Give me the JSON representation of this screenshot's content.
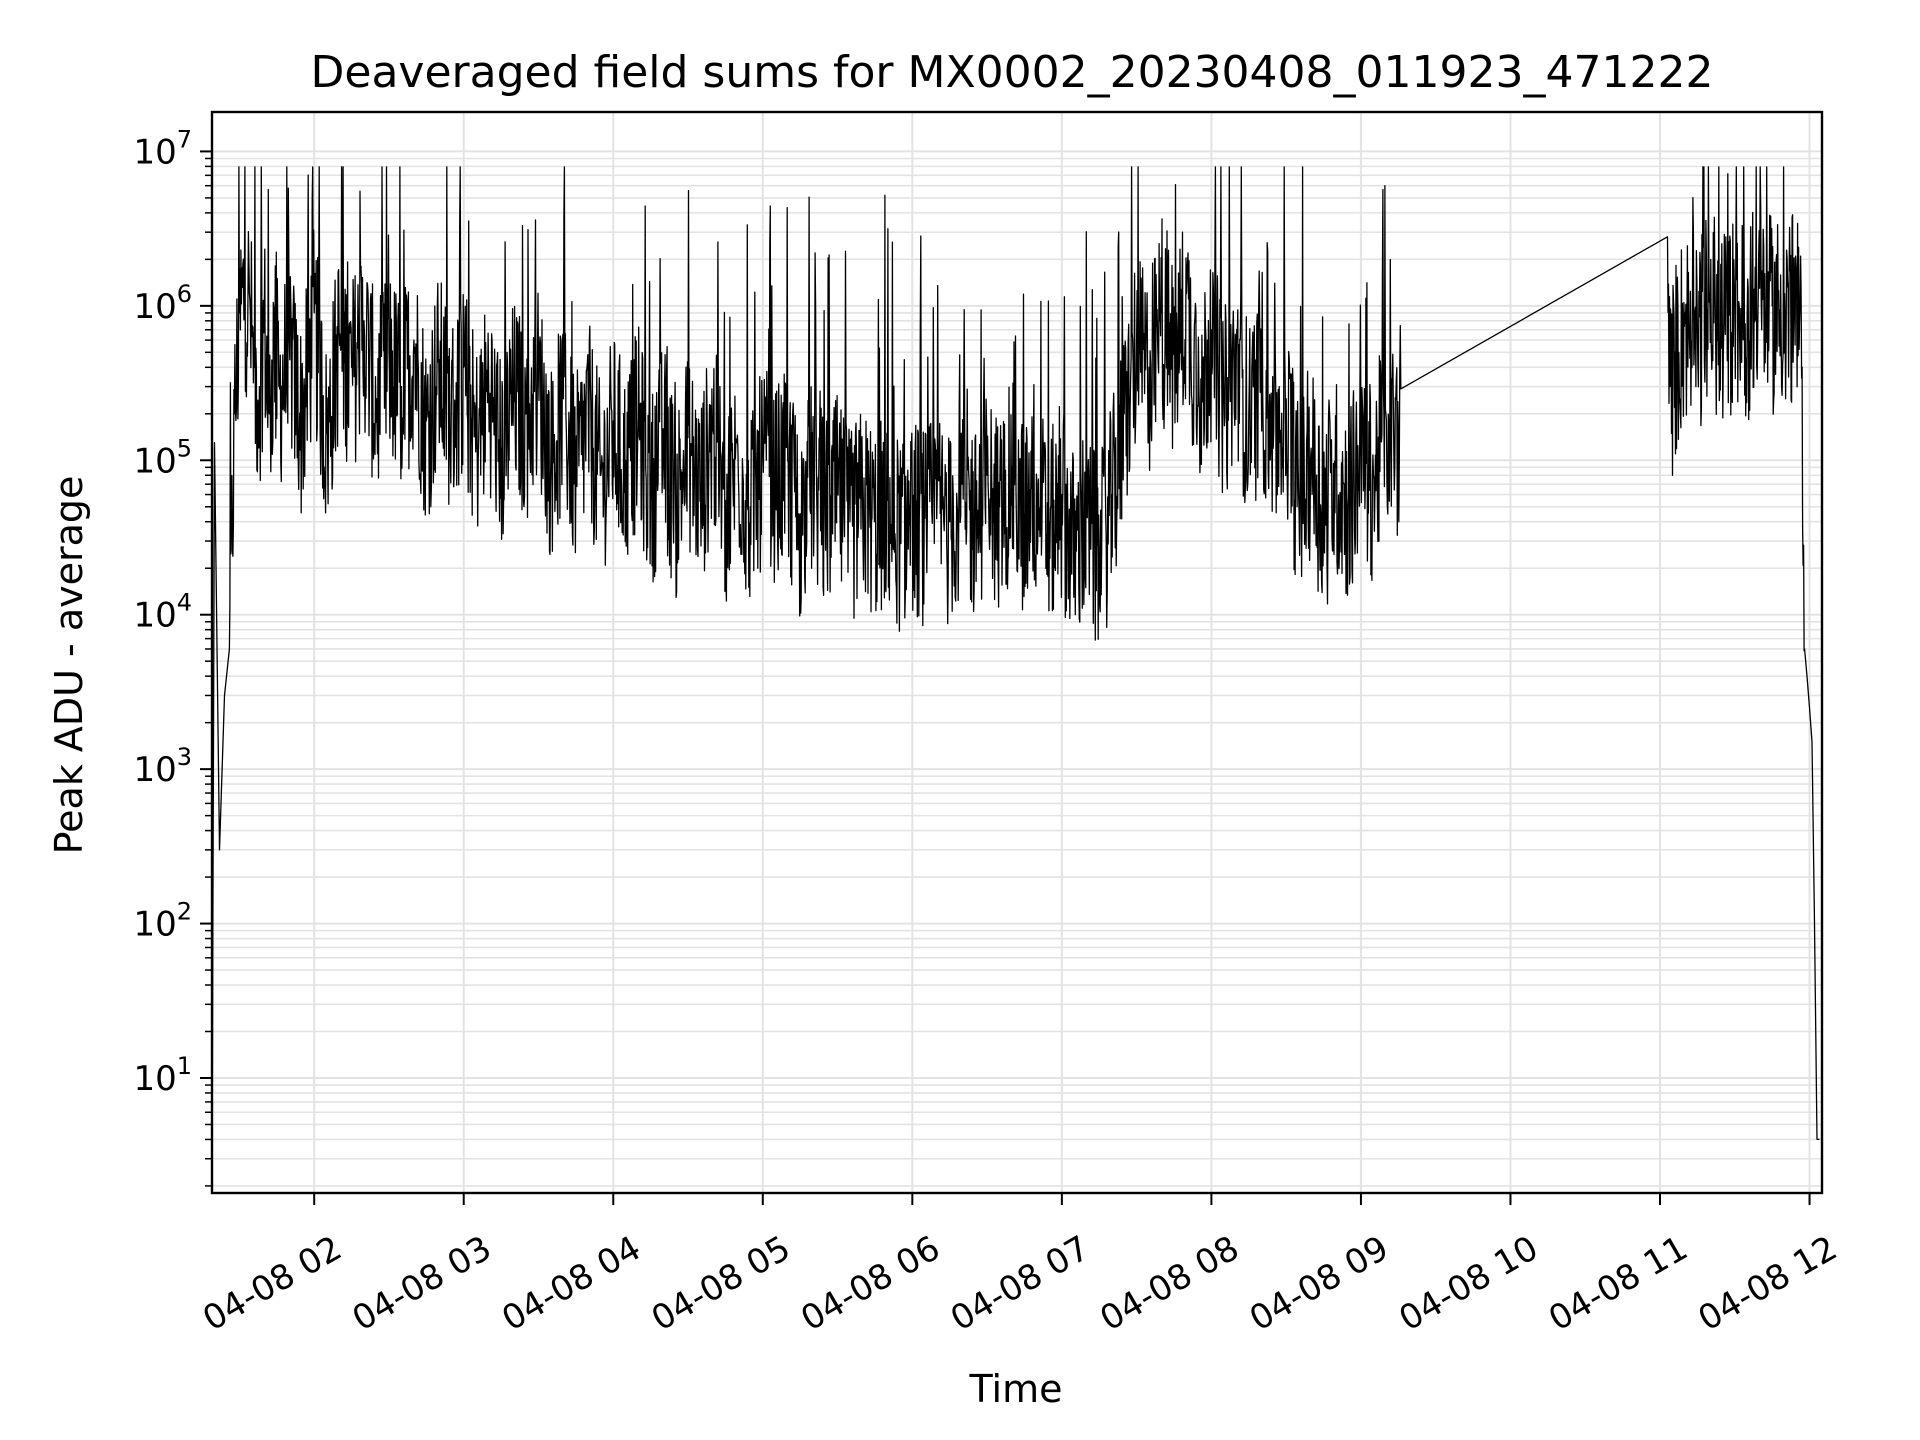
{
  "chart_data": {
    "type": "line",
    "title": "Deaveraged field sums for MX0002_20230408_011923_471222",
    "xlabel": "Time",
    "ylabel": "Peak ADU - average",
    "yscale": "log",
    "ylim": [
      1.8,
      18000000
    ],
    "xlim": [
      "2023-04-08 01:19",
      "2023-04-08 12:05"
    ],
    "grid": true,
    "line_color": "#000000",
    "grid_color": "#e3e3e3",
    "x_ticks": [
      "04-08 02",
      "04-08 03",
      "04-08 04",
      "04-08 05",
      "04-08 06",
      "04-08 07",
      "04-08 08",
      "04-08 09",
      "04-08 10",
      "04-08 11",
      "04-08 12"
    ],
    "y_ticks": [
      {
        "base": "10",
        "exp": "1",
        "value": 10
      },
      {
        "base": "10",
        "exp": "2",
        "value": 100
      },
      {
        "base": "10",
        "exp": "3",
        "value": 1000
      },
      {
        "base": "10",
        "exp": "4",
        "value": 10000
      },
      {
        "base": "10",
        "exp": "5",
        "value": 100000
      },
      {
        "base": "10",
        "exp": "6",
        "value": 1000000
      },
      {
        "base": "10",
        "exp": "7",
        "value": 10000000
      }
    ],
    "series": [
      {
        "x": [
          "01:19",
          "01:20",
          "01:22",
          "01:24",
          "01:26",
          "01:28",
          "01:30",
          "01:32",
          "01:34",
          "01:36",
          "01:38",
          "01:40",
          "01:42",
          "01:44",
          "01:46",
          "01:50",
          "01:55",
          "02:00",
          "02:05",
          "02:10",
          "02:15",
          "02:20",
          "02:25",
          "02:30",
          "02:35",
          "02:40",
          "02:45",
          "02:50",
          "02:55",
          "03:00",
          "03:05",
          "03:10",
          "03:15",
          "03:20",
          "03:25",
          "03:30",
          "03:35",
          "03:40",
          "03:45",
          "03:50",
          "03:55",
          "04:00",
          "04:05",
          "04:10",
          "04:15",
          "04:20",
          "04:25",
          "04:30",
          "04:35",
          "04:40",
          "04:45",
          "04:50",
          "04:55",
          "05:00",
          "05:05",
          "05:10",
          "05:15",
          "05:20",
          "05:25",
          "05:30",
          "05:35",
          "05:40",
          "05:45",
          "05:50",
          "05:55",
          "06:00",
          "06:05",
          "06:10",
          "06:15",
          "06:20",
          "06:25",
          "06:30",
          "06:35",
          "06:40",
          "06:45",
          "06:50",
          "06:55",
          "07:00",
          "07:05",
          "07:10",
          "07:15",
          "07:20",
          "07:25",
          "07:30",
          "07:35",
          "07:40",
          "07:45",
          "07:50",
          "07:55",
          "08:00",
          "08:05",
          "08:10",
          "08:15",
          "08:20",
          "08:25",
          "08:30",
          "08:35",
          "08:40",
          "08:45",
          "08:50",
          "08:55",
          "09:00",
          "09:05",
          "09:10",
          "09:15",
          "09:16",
          "11:03",
          "11:04",
          "11:06",
          "11:10",
          "11:15",
          "11:20",
          "11:25",
          "11:30",
          "11:35",
          "11:40",
          "11:45",
          "11:50",
          "11:54",
          "11:56",
          "11:57",
          "11:58",
          "11:59",
          "12:00",
          "12:01",
          "12:02",
          "12:03",
          "12:04"
        ],
        "y": [
          2,
          130000,
          300,
          3000,
          6000,
          200000,
          900000,
          1400000,
          1200000,
          400000,
          300000,
          900000,
          200000,
          700000,
          300000,
          600000,
          200000,
          900000,
          150000,
          700000,
          400000,
          800000,
          250000,
          500000,
          300000,
          600000,
          180000,
          450000,
          220000,
          400000,
          150000,
          350000,
          120000,
          300000,
          200000,
          380000,
          110000,
          250000,
          90000,
          220000,
          80000,
          180000,
          100000,
          200000,
          70000,
          160000,
          60000,
          140000,
          70000,
          180000,
          55000,
          120000,
          50000,
          110000,
          80000,
          100000,
          45000,
          90000,
          50000,
          70000,
          40000,
          60000,
          45000,
          55000,
          38000,
          50000,
          42000,
          60000,
          40000,
          70000,
          45000,
          80000,
          50000,
          90000,
          45000,
          70000,
          40000,
          60000,
          30000,
          45000,
          25000,
          60000,
          200000,
          600000,
          400000,
          900000,
          500000,
          1200000,
          300000,
          700000,
          250000,
          500000,
          200000,
          350000,
          150000,
          250000,
          60000,
          120000,
          50000,
          90000,
          60000,
          120000,
          80000,
          200000,
          150000,
          290000,
          2800000,
          300000,
          500000,
          900000,
          700000,
          1200000,
          800000,
          1100000,
          900000,
          1300000,
          1000000,
          1200000,
          1100000,
          800000,
          400000,
          6000,
          4000,
          2500,
          1500,
          100,
          4,
          4
        ]
      }
    ]
  }
}
